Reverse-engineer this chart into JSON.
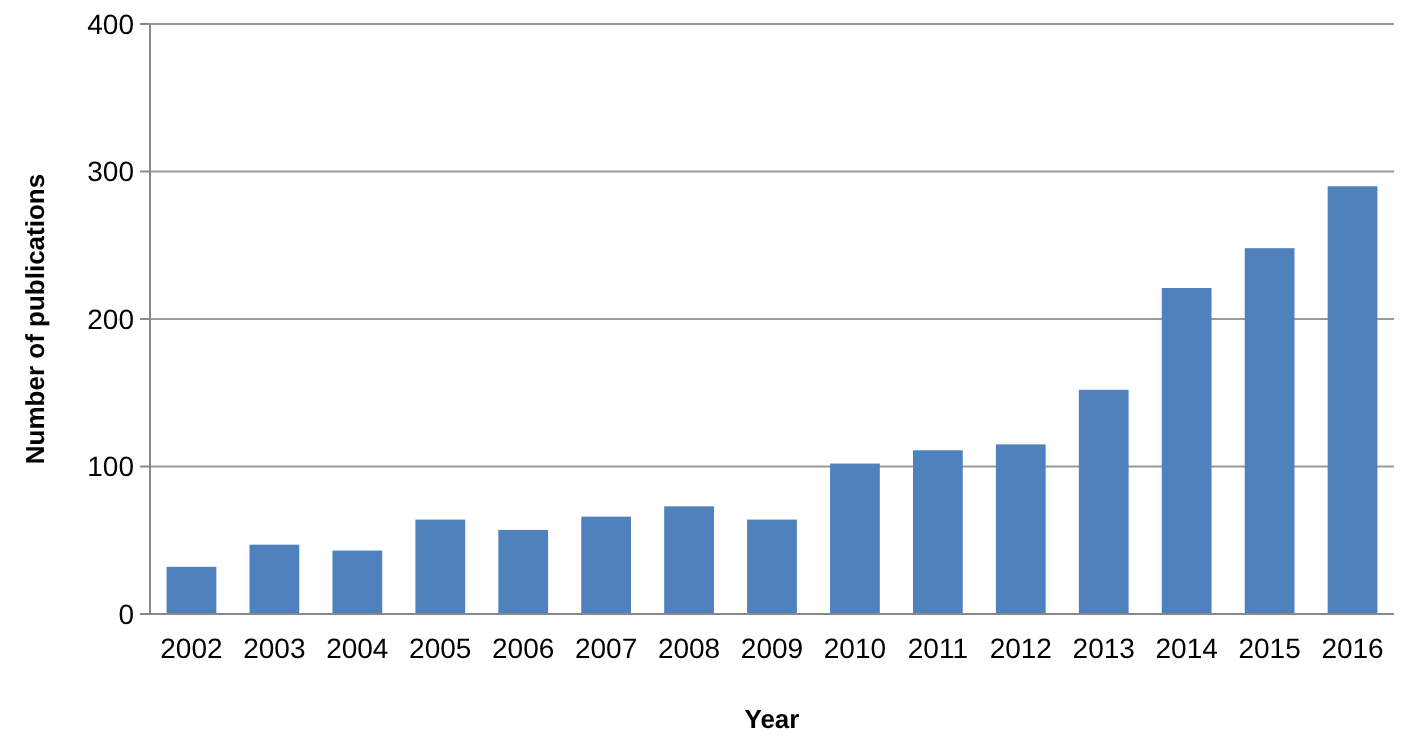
{
  "chart_data": {
    "type": "bar",
    "xlabel": "Year",
    "ylabel": "Number of publications",
    "categories": [
      "2002",
      "2003",
      "2004",
      "2005",
      "2006",
      "2007",
      "2008",
      "2009",
      "2010",
      "2011",
      "2012",
      "2013",
      "2014",
      "2015",
      "2016"
    ],
    "values": [
      32,
      47,
      43,
      64,
      57,
      66,
      73,
      64,
      102,
      111,
      115,
      152,
      221,
      248,
      290
    ],
    "color": "#4f81bd",
    "ylim": [
      0,
      400
    ],
    "yticks": [
      0,
      100,
      200,
      300,
      400
    ],
    "grid": "y"
  }
}
